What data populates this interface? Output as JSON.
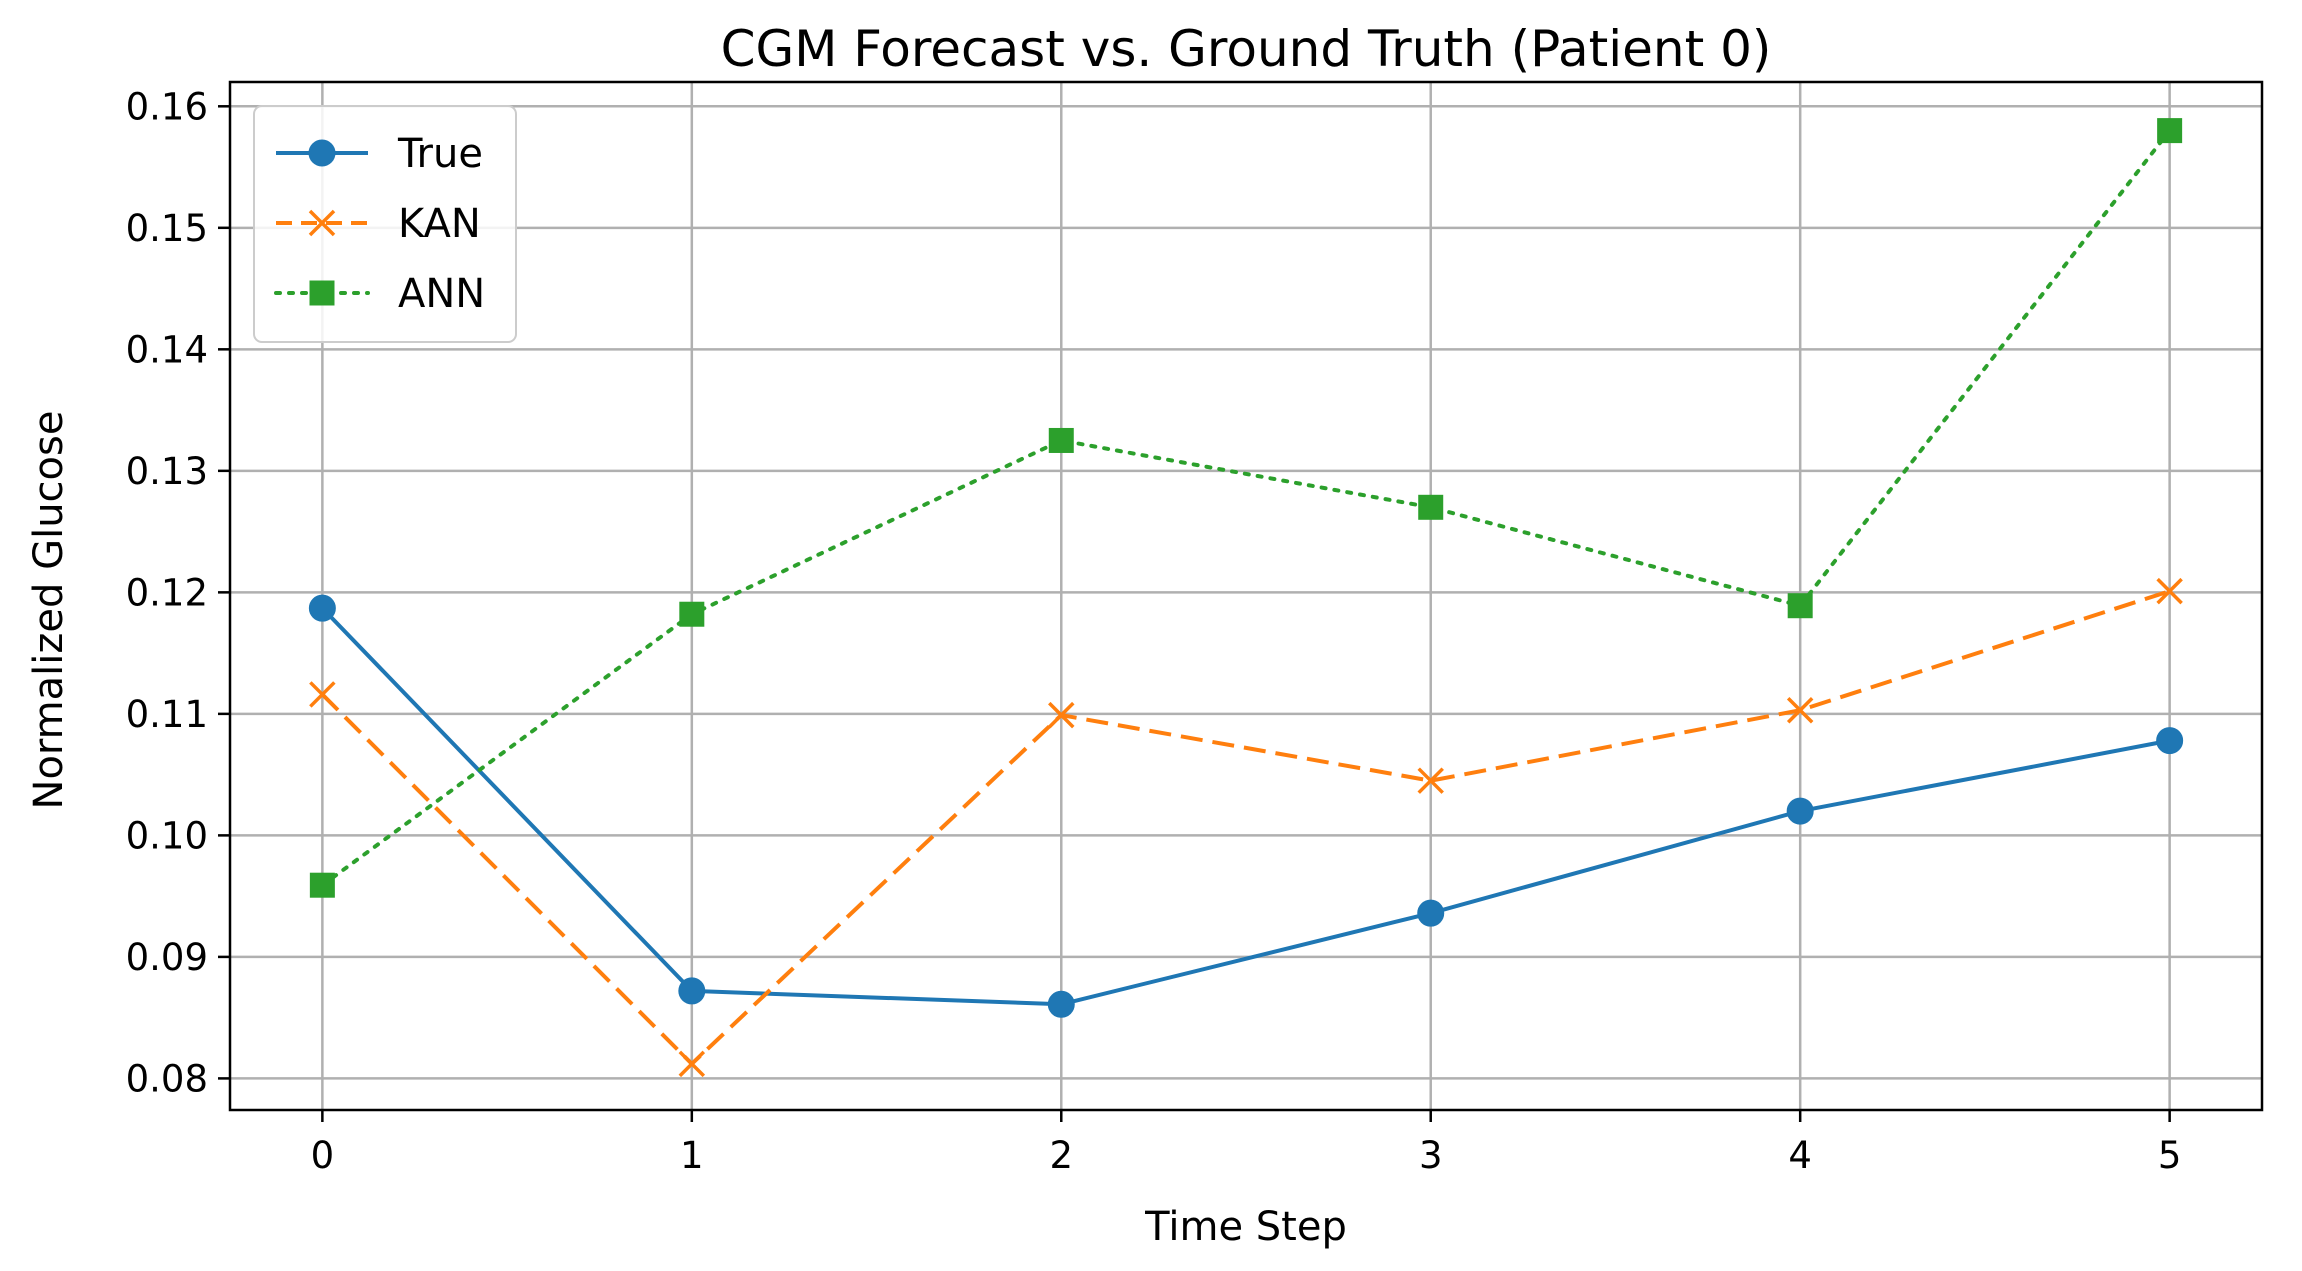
{
  "chart_data": {
    "type": "line",
    "title": "CGM Forecast vs. Ground Truth (Patient 0)",
    "xlabel": "Time Step",
    "ylabel": "Normalized Glucose",
    "x": [
      0,
      1,
      2,
      3,
      4,
      5
    ],
    "x_ticks": [
      "0",
      "1",
      "2",
      "3",
      "4",
      "5"
    ],
    "y_ticks": [
      "0.08",
      "0.09",
      "0.10",
      "0.11",
      "0.12",
      "0.13",
      "0.14",
      "0.15",
      "0.16"
    ],
    "xlim": [
      -0.25,
      5.25
    ],
    "ylim": [
      0.0774,
      0.162
    ],
    "grid": true,
    "legend_position": "upper-left",
    "series": [
      {
        "name": "True",
        "values": [
          0.1187,
          0.0872,
          0.0861,
          0.0936,
          0.102,
          0.1078
        ],
        "color": "#1f77b4",
        "line_style": "solid",
        "marker": "circle"
      },
      {
        "name": "KAN",
        "values": [
          0.1116,
          0.0812,
          0.1099,
          0.1045,
          0.1103,
          0.1201
        ],
        "color": "#ff7f0e",
        "line_style": "dashed",
        "marker": "x"
      },
      {
        "name": "ANN",
        "values": [
          0.0959,
          0.1182,
          0.1325,
          0.127,
          0.1189,
          0.158
        ],
        "color": "#2ca02c",
        "line_style": "dotted",
        "marker": "square"
      }
    ]
  }
}
